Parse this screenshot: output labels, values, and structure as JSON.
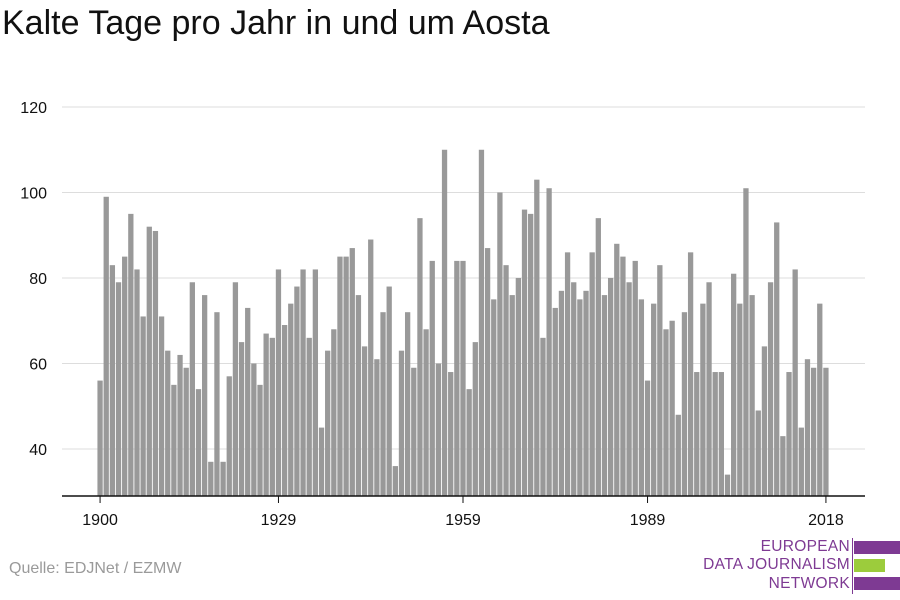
{
  "title": "Kalte Tage pro Jahr in und um Aosta",
  "source": "Quelle: EDJNet / EZMW",
  "logo": {
    "lines": [
      "EUROPEAN",
      "DATA JOURNALISM",
      "NETWORK"
    ],
    "colors": {
      "purple": "#7e3a93",
      "green": "#9ccc3c"
    }
  },
  "colors": {
    "bar": "#999999",
    "grid": "#dddddd",
    "axis": "#111111",
    "text": "#111111"
  },
  "chart_data": {
    "type": "bar",
    "title": "Kalte Tage pro Jahr in und um Aosta",
    "xlabel": "",
    "ylabel": "",
    "ylim": [
      29,
      120
    ],
    "xlim": [
      1899.5,
      2018.5
    ],
    "yticks": [
      40,
      60,
      80,
      100,
      120
    ],
    "xticks": [
      1900,
      1929,
      1959,
      1989,
      2018
    ],
    "grid": true,
    "legend": "none",
    "x": [
      1900,
      1901,
      1902,
      1903,
      1904,
      1905,
      1906,
      1907,
      1908,
      1909,
      1910,
      1911,
      1912,
      1913,
      1914,
      1915,
      1916,
      1917,
      1918,
      1919,
      1920,
      1921,
      1922,
      1923,
      1924,
      1925,
      1926,
      1927,
      1928,
      1929,
      1930,
      1931,
      1932,
      1933,
      1934,
      1935,
      1936,
      1937,
      1938,
      1939,
      1940,
      1941,
      1942,
      1943,
      1944,
      1945,
      1946,
      1947,
      1948,
      1949,
      1950,
      1951,
      1952,
      1953,
      1954,
      1955,
      1956,
      1957,
      1958,
      1959,
      1960,
      1961,
      1962,
      1963,
      1964,
      1965,
      1966,
      1967,
      1968,
      1969,
      1970,
      1971,
      1972,
      1973,
      1974,
      1975,
      1976,
      1977,
      1978,
      1979,
      1980,
      1981,
      1982,
      1983,
      1984,
      1985,
      1986,
      1987,
      1988,
      1989,
      1990,
      1991,
      1992,
      1993,
      1994,
      1995,
      1996,
      1997,
      1998,
      1999,
      2000,
      2001,
      2002,
      2003,
      2004,
      2005,
      2006,
      2007,
      2008,
      2009,
      2010,
      2011,
      2012,
      2013,
      2014,
      2015,
      2016,
      2017,
      2018
    ],
    "values": [
      56,
      99,
      83,
      79,
      85,
      95,
      82,
      71,
      92,
      91,
      71,
      63,
      55,
      62,
      59,
      79,
      54,
      76,
      37,
      72,
      37,
      57,
      79,
      65,
      73,
      60,
      55,
      67,
      66,
      82,
      69,
      74,
      78,
      82,
      66,
      82,
      45,
      63,
      68,
      85,
      85,
      87,
      76,
      64,
      89,
      61,
      72,
      78,
      36,
      63,
      72,
      59,
      94,
      68,
      84,
      60,
      110,
      58,
      84,
      84,
      54,
      65,
      110,
      87,
      75,
      100,
      83,
      76,
      80,
      96,
      95,
      103,
      66,
      101,
      73,
      77,
      86,
      79,
      75,
      77,
      86,
      94,
      76,
      80,
      88,
      85,
      79,
      84,
      75,
      56,
      74,
      83,
      68,
      70,
      48,
      72,
      86,
      58,
      74,
      79,
      58,
      58,
      34,
      81,
      74,
      101,
      76,
      49,
      64,
      79,
      93,
      43,
      58,
      82,
      45,
      61,
      59,
      74,
      59
    ]
  }
}
